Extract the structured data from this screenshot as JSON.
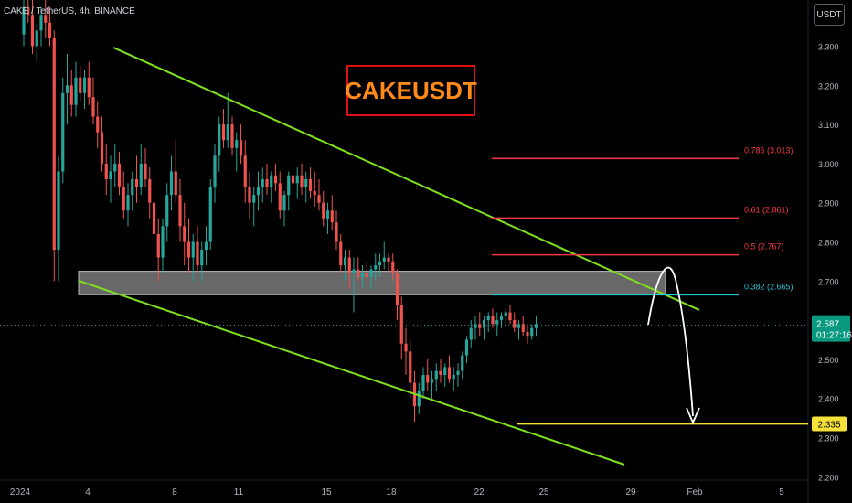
{
  "header": {
    "symbol_line": "CAKE / TetherUS, 4h, BINANCE"
  },
  "currency_button": "USDT",
  "chart_title": "CAKEUSDT",
  "chart_data": {
    "type": "candlestick",
    "y_axis": {
      "min": 2.2,
      "max": 3.35,
      "ticks": [
        "3.300",
        "3.200",
        "3.100",
        "3.000",
        "2.900",
        "2.800",
        "2.700",
        "2.600",
        "2.500",
        "2.400",
        "2.300",
        "2.200"
      ]
    },
    "x_axis": {
      "labels": [
        "2024",
        "4",
        "8",
        "11",
        "15",
        "18",
        "22",
        "25",
        "29",
        "Feb",
        "5"
      ]
    },
    "last_price": {
      "value": "2.587",
      "countdown": "01:27:16"
    },
    "target_price": "2.335",
    "fib_levels": [
      {
        "label": "0.786 (3.013)",
        "value": 3.013,
        "color": "#f23645"
      },
      {
        "label": "0.61 (2.861)",
        "value": 2.861,
        "color": "#f23645"
      },
      {
        "label": "0.5 (2.767)",
        "value": 2.767,
        "color": "#f23645"
      },
      {
        "label": "0.382 (2.665)",
        "value": 2.665,
        "color": "#26c6da"
      }
    ],
    "support_zone": {
      "top": 2.725,
      "bottom": 2.665
    },
    "colors": {
      "up": "#26a69a",
      "down": "#ef5350",
      "channel": "#7fe01e",
      "target": "#f5e13a",
      "arrow": "#ffffff"
    },
    "candles": [
      [
        3.33,
        3.42,
        3.3,
        3.4
      ],
      [
        3.4,
        3.44,
        3.36,
        3.38
      ],
      [
        3.38,
        3.42,
        3.28,
        3.3
      ],
      [
        3.3,
        3.36,
        3.26,
        3.34
      ],
      [
        3.34,
        3.4,
        3.3,
        3.38
      ],
      [
        3.38,
        3.42,
        3.32,
        3.36
      ],
      [
        3.36,
        3.4,
        3.3,
        3.32
      ],
      [
        3.32,
        3.34,
        2.7,
        2.78
      ],
      [
        2.78,
        3.02,
        2.7,
        2.98
      ],
      [
        2.98,
        3.22,
        2.95,
        3.18
      ],
      [
        3.18,
        3.28,
        3.1,
        3.2
      ],
      [
        3.2,
        3.24,
        3.12,
        3.15
      ],
      [
        3.15,
        3.26,
        3.12,
        3.22
      ],
      [
        3.22,
        3.25,
        3.16,
        3.18
      ],
      [
        3.18,
        3.24,
        3.14,
        3.22
      ],
      [
        3.22,
        3.26,
        3.15,
        3.17
      ],
      [
        3.17,
        3.22,
        3.1,
        3.12
      ],
      [
        3.12,
        3.16,
        3.04,
        3.08
      ],
      [
        3.08,
        3.12,
        2.98,
        3.0
      ],
      [
        3.0,
        3.05,
        2.92,
        2.96
      ],
      [
        2.96,
        3.02,
        2.9,
        2.98
      ],
      [
        2.98,
        3.05,
        2.94,
        3.0
      ],
      [
        3.0,
        3.03,
        2.92,
        2.94
      ],
      [
        2.94,
        2.98,
        2.86,
        2.88
      ],
      [
        2.88,
        2.95,
        2.84,
        2.92
      ],
      [
        2.92,
        2.98,
        2.88,
        2.96
      ],
      [
        2.96,
        3.02,
        2.9,
        2.94
      ],
      [
        2.94,
        3.05,
        2.92,
        3.0
      ],
      [
        3.0,
        3.04,
        2.94,
        2.96
      ],
      [
        2.96,
        2.99,
        2.86,
        2.9
      ],
      [
        2.9,
        2.93,
        2.78,
        2.82
      ],
      [
        2.82,
        2.86,
        2.7,
        2.76
      ],
      [
        2.76,
        2.86,
        2.72,
        2.84
      ],
      [
        2.84,
        2.95,
        2.8,
        2.92
      ],
      [
        2.92,
        3.02,
        2.88,
        2.98
      ],
      [
        2.98,
        3.06,
        2.9,
        2.92
      ],
      [
        2.92,
        2.96,
        2.8,
        2.84
      ],
      [
        2.84,
        2.9,
        2.74,
        2.8
      ],
      [
        2.8,
        2.86,
        2.72,
        2.76
      ],
      [
        2.76,
        2.82,
        2.7,
        2.8
      ],
      [
        2.8,
        2.84,
        2.72,
        2.74
      ],
      [
        2.74,
        2.8,
        2.7,
        2.78
      ],
      [
        2.78,
        2.84,
        2.74,
        2.8
      ],
      [
        2.8,
        2.96,
        2.78,
        2.94
      ],
      [
        2.94,
        3.05,
        2.9,
        3.02
      ],
      [
        3.02,
        3.12,
        2.98,
        3.1
      ],
      [
        3.1,
        3.14,
        3.04,
        3.06
      ],
      [
        3.06,
        3.18,
        3.04,
        3.1
      ],
      [
        3.1,
        3.12,
        3.02,
        3.04
      ],
      [
        3.04,
        3.08,
        2.98,
        3.06
      ],
      [
        3.06,
        3.1,
        3.0,
        3.02
      ],
      [
        3.02,
        3.06,
        2.9,
        2.94
      ],
      [
        2.94,
        2.98,
        2.86,
        2.9
      ],
      [
        2.9,
        2.94,
        2.84,
        2.92
      ],
      [
        2.92,
        2.98,
        2.88,
        2.94
      ],
      [
        2.94,
        2.99,
        2.9,
        2.96
      ],
      [
        2.96,
        3.0,
        2.92,
        2.94
      ],
      [
        2.94,
        2.98,
        2.9,
        2.97
      ],
      [
        2.97,
        3.0,
        2.93,
        2.95
      ],
      [
        2.95,
        2.98,
        2.86,
        2.88
      ],
      [
        2.88,
        2.93,
        2.84,
        2.92
      ],
      [
        2.92,
        2.98,
        2.88,
        2.97
      ],
      [
        2.97,
        3.02,
        2.93,
        2.95
      ],
      [
        2.95,
        2.99,
        2.91,
        2.97
      ],
      [
        2.97,
        3.0,
        2.92,
        2.94
      ],
      [
        2.94,
        2.98,
        2.9,
        2.96
      ],
      [
        2.96,
        2.99,
        2.91,
        2.93
      ],
      [
        2.93,
        2.98,
        2.89,
        2.92
      ],
      [
        2.92,
        2.96,
        2.88,
        2.9
      ],
      [
        2.9,
        2.93,
        2.84,
        2.86
      ],
      [
        2.86,
        2.9,
        2.82,
        2.88
      ],
      [
        2.88,
        2.92,
        2.83,
        2.85
      ],
      [
        2.85,
        2.88,
        2.78,
        2.8
      ],
      [
        2.8,
        2.82,
        2.72,
        2.74
      ],
      [
        2.74,
        2.78,
        2.7,
        2.76
      ],
      [
        2.76,
        2.78,
        2.68,
        2.72
      ],
      [
        2.72,
        2.76,
        2.62,
        2.73
      ],
      [
        2.73,
        2.76,
        2.7,
        2.71
      ],
      [
        2.71,
        2.74,
        2.68,
        2.72
      ],
      [
        2.72,
        2.75,
        2.69,
        2.71
      ],
      [
        2.71,
        2.74,
        2.68,
        2.73
      ],
      [
        2.73,
        2.77,
        2.7,
        2.74
      ],
      [
        2.74,
        2.77,
        2.71,
        2.75
      ],
      [
        2.75,
        2.8,
        2.73,
        2.76
      ],
      [
        2.76,
        2.77,
        2.72,
        2.75
      ],
      [
        2.75,
        2.77,
        2.7,
        2.72
      ],
      [
        2.72,
        2.73,
        2.6,
        2.64
      ],
      [
        2.64,
        2.66,
        2.5,
        2.54
      ],
      [
        2.54,
        2.58,
        2.46,
        2.52
      ],
      [
        2.52,
        2.55,
        2.4,
        2.44
      ],
      [
        2.44,
        2.47,
        2.34,
        2.38
      ],
      [
        2.38,
        2.44,
        2.36,
        2.42
      ],
      [
        2.42,
        2.48,
        2.4,
        2.46
      ],
      [
        2.46,
        2.5,
        2.42,
        2.44
      ],
      [
        2.44,
        2.47,
        2.4,
        2.45
      ],
      [
        2.45,
        2.49,
        2.42,
        2.47
      ],
      [
        2.47,
        2.5,
        2.44,
        2.46
      ],
      [
        2.46,
        2.49,
        2.43,
        2.48
      ],
      [
        2.48,
        2.51,
        2.44,
        2.45
      ],
      [
        2.45,
        2.48,
        2.42,
        2.46
      ],
      [
        2.46,
        2.49,
        2.43,
        2.47
      ],
      [
        2.47,
        2.52,
        2.45,
        2.51
      ],
      [
        2.51,
        2.56,
        2.49,
        2.55
      ],
      [
        2.55,
        2.6,
        2.53,
        2.58
      ],
      [
        2.58,
        2.61,
        2.55,
        2.59
      ],
      [
        2.59,
        2.62,
        2.56,
        2.58
      ],
      [
        2.58,
        2.61,
        2.55,
        2.6
      ],
      [
        2.6,
        2.62,
        2.57,
        2.61
      ],
      [
        2.61,
        2.63,
        2.58,
        2.59
      ],
      [
        2.59,
        2.62,
        2.56,
        2.6
      ],
      [
        2.6,
        2.62,
        2.58,
        2.61
      ],
      [
        2.61,
        2.63,
        2.59,
        2.62
      ],
      [
        2.62,
        2.64,
        2.59,
        2.6
      ],
      [
        2.6,
        2.62,
        2.57,
        2.58
      ],
      [
        2.58,
        2.6,
        2.55,
        2.59
      ],
      [
        2.59,
        2.61,
        2.56,
        2.57
      ],
      [
        2.57,
        2.59,
        2.54,
        2.56
      ],
      [
        2.56,
        2.59,
        2.55,
        2.58
      ],
      [
        2.58,
        2.61,
        2.56,
        2.59
      ]
    ]
  }
}
